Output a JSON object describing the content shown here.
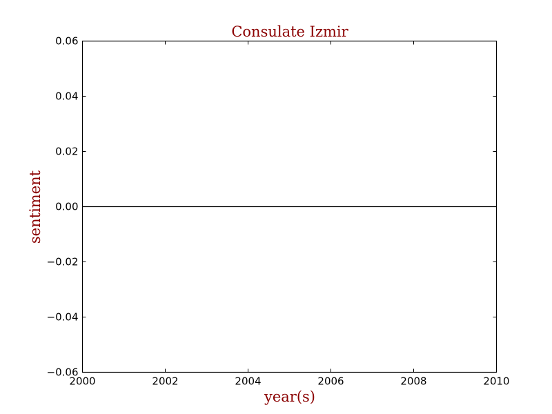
{
  "chart_data": {
    "type": "line",
    "title": "Consulate Izmir",
    "xlabel": "year(s)",
    "ylabel": "sentiment",
    "xlim": [
      2000,
      2010
    ],
    "ylim": [
      -0.06,
      0.06
    ],
    "x_ticks": [
      2000,
      2002,
      2004,
      2006,
      2008,
      2010
    ],
    "x_tick_labels": [
      "2000",
      "2002",
      "2004",
      "2006",
      "2008",
      "2010"
    ],
    "y_ticks": [
      -0.06,
      -0.04,
      -0.02,
      0.0,
      0.02,
      0.04,
      0.06
    ],
    "y_tick_labels": [
      "−0.06",
      "−0.04",
      "−0.02",
      "0.00",
      "0.02",
      "0.04",
      "0.06"
    ],
    "reference_lines": [
      {
        "axis": "y",
        "value": 0.0
      }
    ],
    "series": [],
    "grid": false,
    "colors": {
      "title": "#8b0000",
      "labels": "#8b0000",
      "axes": "#000000",
      "reference_line": "#000000"
    }
  }
}
